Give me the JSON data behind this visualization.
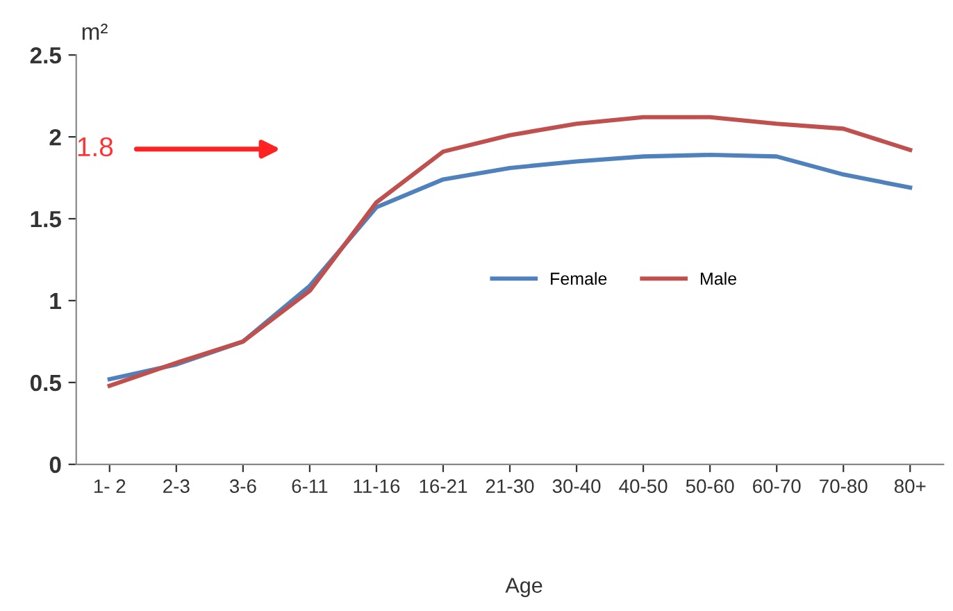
{
  "chart_data": {
    "type": "line",
    "ylabel": "m²",
    "xlabel": "Age",
    "categories": [
      "1- 2",
      "2-3",
      "3-6",
      "6-11",
      "11-16",
      "16-21",
      "21-30",
      "30-40",
      "40-50",
      "50-60",
      "60-70",
      "70-80",
      "80+"
    ],
    "series": [
      {
        "name": "Female",
        "color": "#4f81bd",
        "values": [
          0.52,
          0.61,
          0.75,
          1.09,
          1.57,
          1.74,
          1.81,
          1.85,
          1.88,
          1.89,
          1.88,
          1.77,
          1.69
        ]
      },
      {
        "name": "Male",
        "color": "#c0504d",
        "values": [
          0.48,
          0.62,
          0.75,
          1.06,
          1.6,
          1.91,
          2.01,
          2.08,
          2.12,
          2.12,
          2.08,
          2.05,
          1.92
        ]
      }
    ],
    "ylim": [
      0,
      2.5
    ],
    "yticks": [
      0,
      0.5,
      1,
      1.5,
      2,
      2.5
    ],
    "grid": false,
    "legend": "center right",
    "marker": "none",
    "line_style": "solid",
    "annotations": [
      "1.8"
    ]
  }
}
